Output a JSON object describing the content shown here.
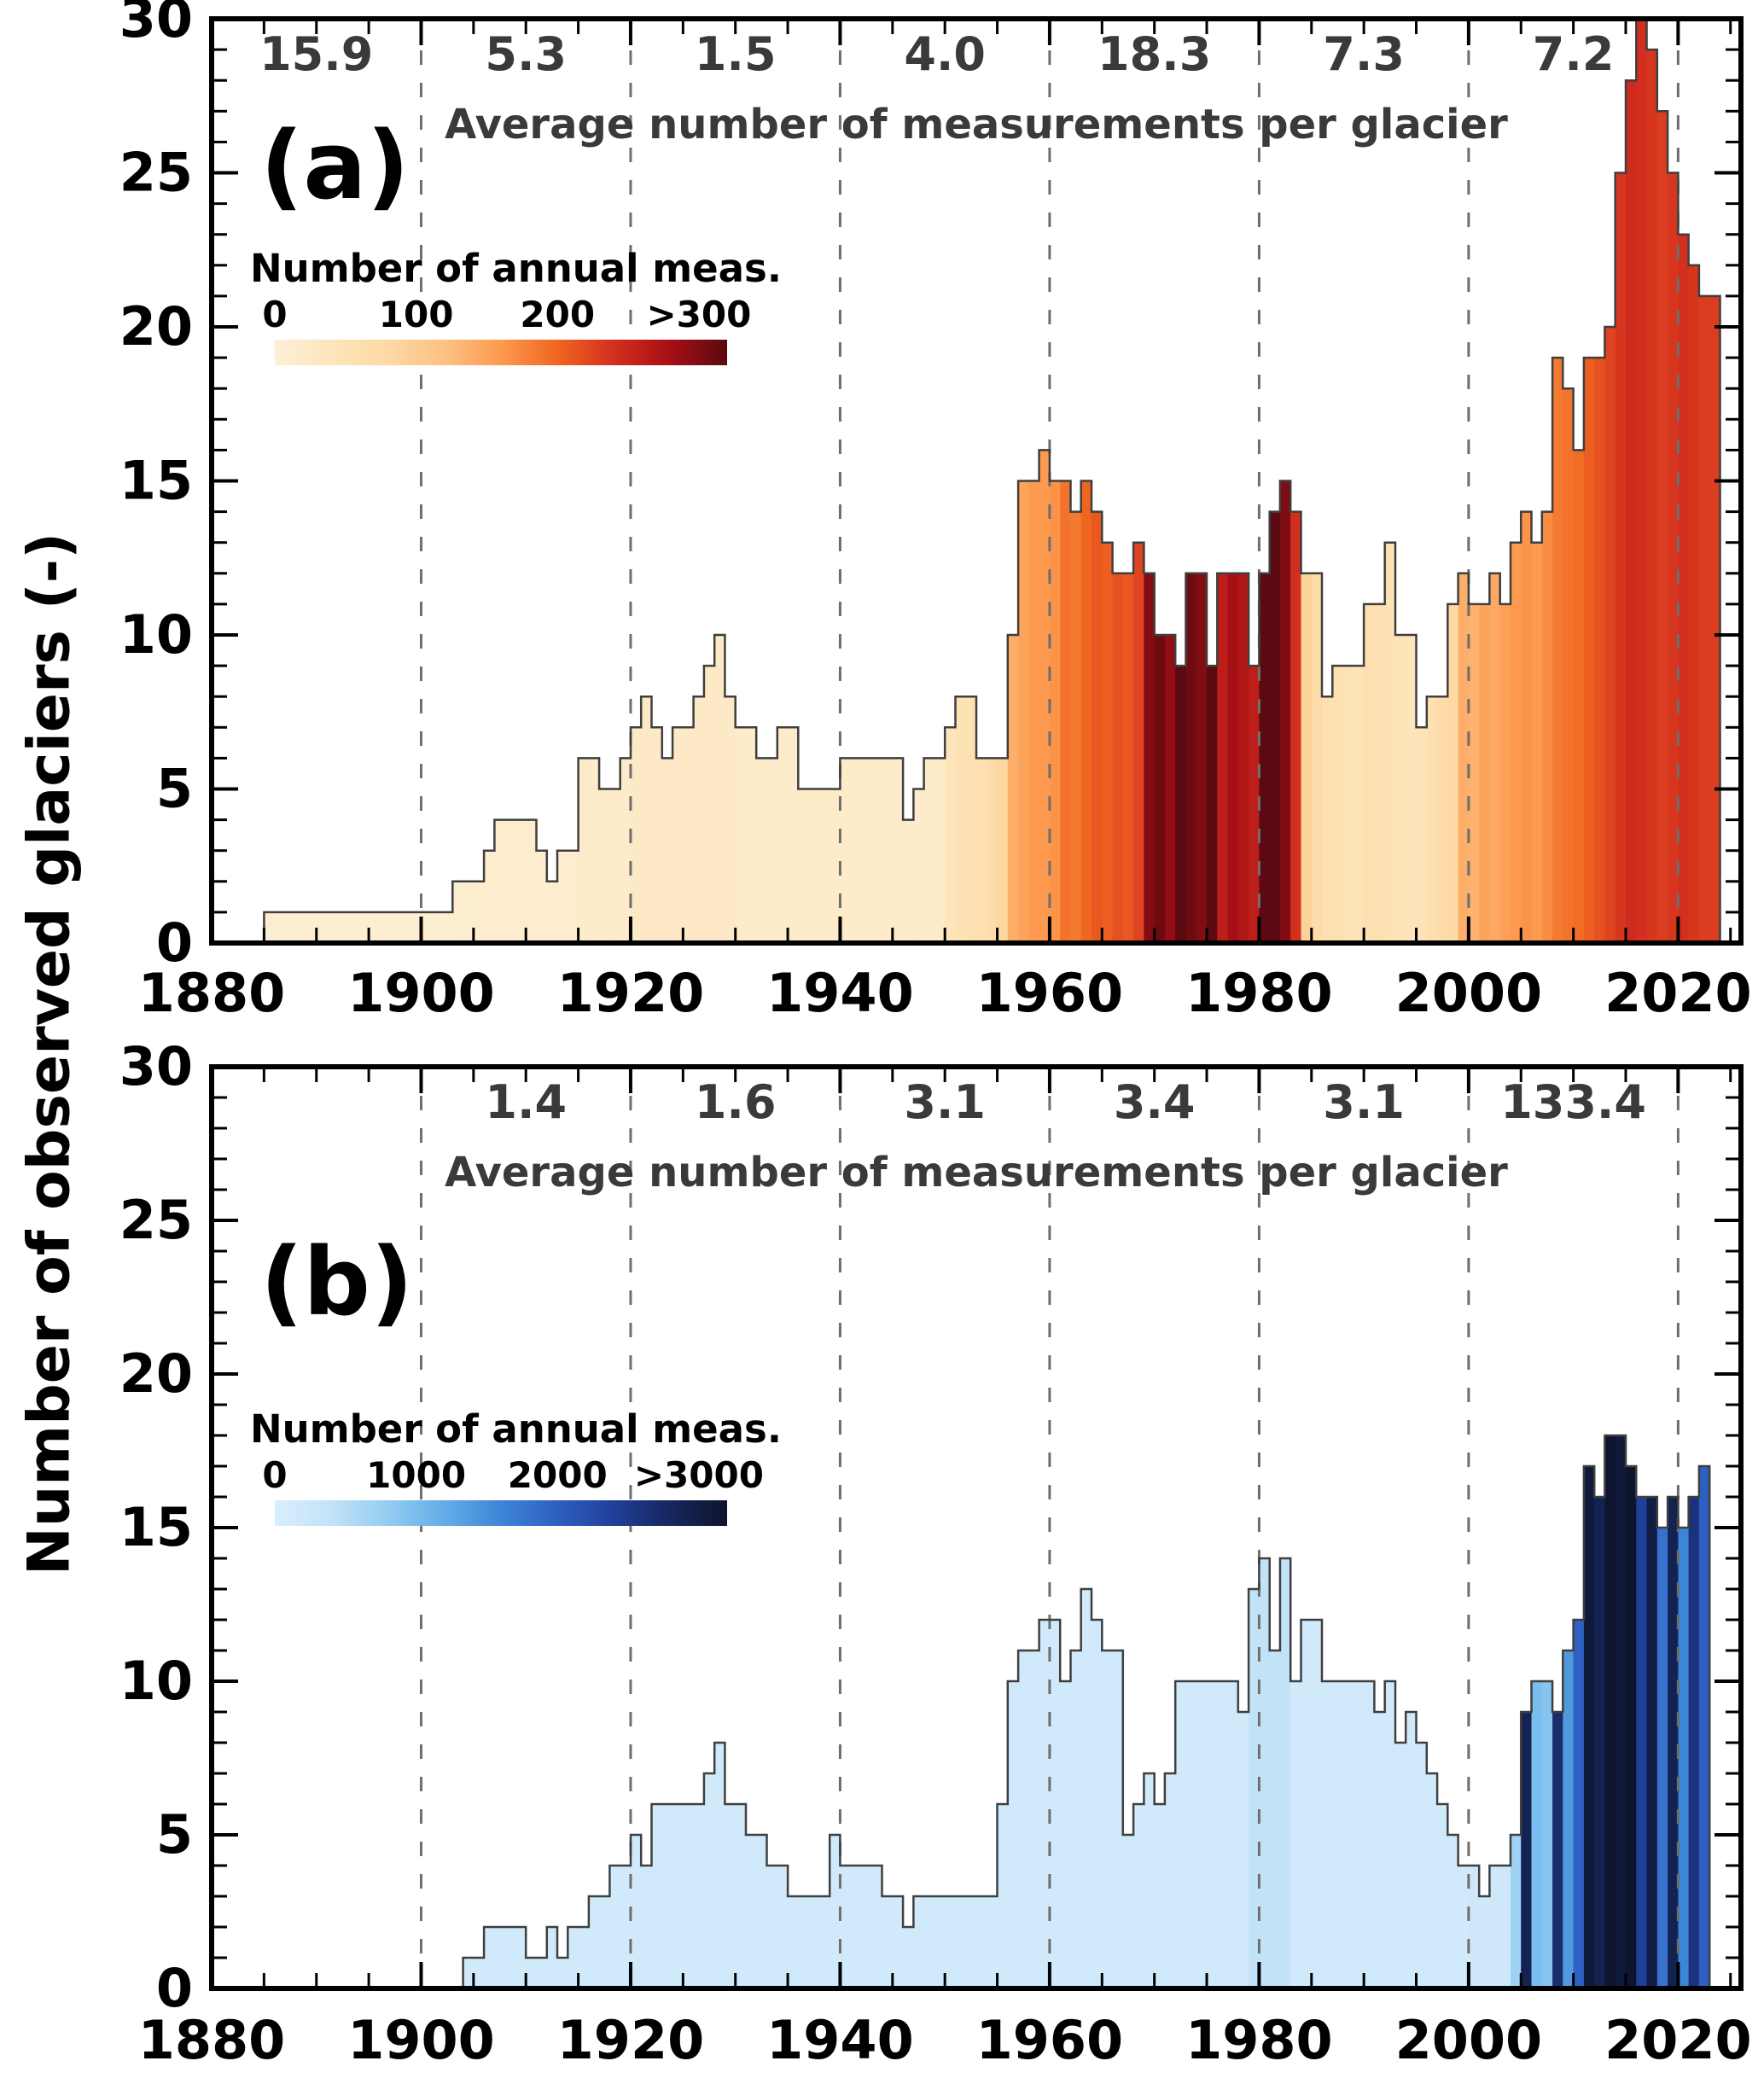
{
  "figure": {
    "ylabel": "Number of observed glaciers (-)"
  },
  "chart_data": [
    {
      "type": "bar",
      "panel_label": "(a)",
      "annotation_title": "Average number of measurements per glacier",
      "interval_avg_measurements": [
        {
          "center_year": 1890,
          "label": "15.9"
        },
        {
          "center_year": 1910,
          "label": "5.3"
        },
        {
          "center_year": 1930,
          "label": "1.5"
        },
        {
          "center_year": 1950,
          "label": "4.0"
        },
        {
          "center_year": 1970,
          "label": "18.3"
        },
        {
          "center_year": 1990,
          "label": "7.3"
        },
        {
          "center_year": 2010,
          "label": "7.2"
        }
      ],
      "legend": {
        "title": "Number of annual meas.",
        "tick_labels": [
          "0",
          "100",
          "200",
          ">300"
        ],
        "tick_values": [
          0,
          100,
          200,
          300
        ]
      },
      "colormap": {
        "domain_max": 320,
        "stops": [
          [
            0,
            "#fdf0d7"
          ],
          [
            40,
            "#fde5bb"
          ],
          [
            80,
            "#fdd9a4"
          ],
          [
            120,
            "#fdc183"
          ],
          [
            160,
            "#fd9a4f"
          ],
          [
            200,
            "#ef6620"
          ],
          [
            240,
            "#d32f1e"
          ],
          [
            280,
            "#a50f15"
          ],
          [
            320,
            "#5a0a10"
          ]
        ]
      },
      "xlim": [
        1880,
        2026
      ],
      "ylim": [
        0,
        30
      ],
      "x_ticks": [
        1880,
        1900,
        1920,
        1940,
        1960,
        1980,
        2000,
        2020
      ],
      "y_ticks": [
        0,
        5,
        10,
        15,
        20,
        25,
        30
      ],
      "gridline_years": [
        1900,
        1920,
        1940,
        1960,
        1980,
        2000,
        2020
      ],
      "start_year": 1885,
      "values": [
        1,
        1,
        1,
        1,
        1,
        1,
        1,
        1,
        1,
        1,
        1,
        1,
        1,
        1,
        1,
        1,
        1,
        1,
        2,
        2,
        2,
        3,
        4,
        4,
        4,
        4,
        3,
        2,
        3,
        3,
        6,
        6,
        5,
        5,
        6,
        7,
        8,
        7,
        6,
        7,
        7,
        8,
        9,
        10,
        8,
        7,
        7,
        6,
        6,
        7,
        7,
        5,
        5,
        5,
        5,
        6,
        6,
        6,
        6,
        6,
        6,
        4,
        5,
        6,
        6,
        7,
        8,
        8,
        6,
        6,
        6,
        10,
        15,
        15,
        16,
        15,
        15,
        14,
        15,
        14,
        13,
        12,
        12,
        13,
        12,
        10,
        10,
        9,
        12,
        12,
        9,
        12,
        12,
        12,
        9,
        12,
        14,
        15,
        14,
        12,
        12,
        8,
        9,
        9,
        9,
        11,
        11,
        13,
        10,
        10,
        7,
        8,
        8,
        11,
        12,
        11,
        11,
        12,
        11,
        13,
        14,
        13,
        14,
        19,
        18,
        16,
        19,
        19,
        20,
        25,
        28,
        30,
        29,
        27,
        25,
        23,
        22,
        21,
        21
      ],
      "annual_measurements": [
        8,
        8,
        8,
        8,
        8,
        8,
        8,
        8,
        8,
        8,
        8,
        8,
        8,
        8,
        8,
        8,
        8,
        8,
        12,
        12,
        12,
        15,
        15,
        15,
        15,
        15,
        15,
        15,
        15,
        15,
        20,
        20,
        20,
        20,
        20,
        25,
        25,
        25,
        25,
        25,
        25,
        25,
        25,
        25,
        25,
        20,
        20,
        20,
        20,
        20,
        18,
        18,
        18,
        18,
        18,
        18,
        18,
        18,
        18,
        18,
        20,
        20,
        20,
        20,
        20,
        40,
        50,
        55,
        60,
        70,
        85,
        140,
        150,
        160,
        160,
        165,
        190,
        185,
        200,
        210,
        205,
        215,
        210,
        225,
        300,
        310,
        290,
        320,
        310,
        300,
        320,
        260,
        280,
        270,
        260,
        320,
        320,
        300,
        240,
        90,
        70,
        60,
        55,
        50,
        45,
        60,
        55,
        50,
        45,
        40,
        45,
        60,
        70,
        80,
        140,
        135,
        150,
        145,
        155,
        160,
        165,
        160,
        170,
        185,
        190,
        195,
        205,
        215,
        225,
        235,
        245,
        240,
        235,
        230,
        235,
        240,
        235,
        230,
        230
      ]
    },
    {
      "type": "bar",
      "panel_label": "(b)",
      "annotation_title": "Average number of measurements per glacier",
      "interval_avg_measurements": [
        {
          "center_year": 1910,
          "label": "1.4"
        },
        {
          "center_year": 1930,
          "label": "1.6"
        },
        {
          "center_year": 1950,
          "label": "3.1"
        },
        {
          "center_year": 1970,
          "label": "3.4"
        },
        {
          "center_year": 1990,
          "label": "3.1"
        },
        {
          "center_year": 2010,
          "label": "133.4"
        }
      ],
      "legend": {
        "title": "Number of annual meas.",
        "tick_labels": [
          "0",
          "1000",
          "2000",
          ">3000"
        ],
        "tick_values": [
          0,
          1000,
          2000,
          3000
        ]
      },
      "colormap": {
        "domain_max": 3200,
        "stops": [
          [
            0,
            "#d9eefc"
          ],
          [
            400,
            "#c2e2f8"
          ],
          [
            800,
            "#93ccf1"
          ],
          [
            1200,
            "#62ade8"
          ],
          [
            1600,
            "#3d85d6"
          ],
          [
            2000,
            "#2e5fc2"
          ],
          [
            2400,
            "#203f97"
          ],
          [
            2800,
            "#16265e"
          ],
          [
            3200,
            "#0d142e"
          ]
        ]
      },
      "xlim": [
        1880,
        2026
      ],
      "ylim": [
        0,
        30
      ],
      "x_ticks": [
        1880,
        1900,
        1920,
        1940,
        1960,
        1980,
        2000,
        2020
      ],
      "y_ticks": [
        0,
        5,
        10,
        15,
        20,
        25,
        30
      ],
      "gridline_years": [
        1900,
        1920,
        1940,
        1960,
        1980,
        2000,
        2020
      ],
      "start_year": 1904,
      "values": [
        1,
        1,
        2,
        2,
        2,
        2,
        1,
        1,
        2,
        1,
        2,
        2,
        3,
        3,
        4,
        4,
        5,
        4,
        6,
        6,
        6,
        6,
        6,
        7,
        8,
        6,
        6,
        5,
        5,
        4,
        4,
        3,
        3,
        3,
        3,
        5,
        4,
        4,
        4,
        4,
        3,
        3,
        2,
        3,
        3,
        3,
        3,
        3,
        3,
        3,
        3,
        6,
        10,
        11,
        11,
        12,
        12,
        10,
        11,
        13,
        12,
        11,
        11,
        5,
        6,
        7,
        6,
        7,
        10,
        10,
        10,
        10,
        10,
        10,
        9,
        13,
        14,
        11,
        14,
        10,
        12,
        12,
        10,
        10,
        10,
        10,
        10,
        9,
        10,
        8,
        9,
        8,
        7,
        6,
        5,
        4,
        4,
        3,
        4,
        4,
        5,
        9,
        10,
        10,
        9,
        11,
        12,
        17,
        16,
        18,
        18,
        17,
        16,
        16,
        15,
        16,
        15,
        16,
        17
      ],
      "annual_measurements": [
        150,
        150,
        150,
        150,
        150,
        150,
        150,
        150,
        150,
        150,
        150,
        150,
        150,
        150,
        150,
        150,
        150,
        150,
        150,
        150,
        150,
        150,
        150,
        150,
        150,
        150,
        150,
        150,
        150,
        150,
        150,
        150,
        150,
        150,
        150,
        150,
        150,
        150,
        150,
        150,
        150,
        150,
        150,
        150,
        150,
        150,
        150,
        150,
        150,
        150,
        150,
        150,
        150,
        150,
        150,
        150,
        150,
        150,
        150,
        150,
        150,
        150,
        150,
        150,
        150,
        150,
        150,
        150,
        150,
        150,
        150,
        150,
        150,
        150,
        150,
        400,
        400,
        400,
        400,
        150,
        150,
        150,
        150,
        150,
        150,
        150,
        150,
        150,
        150,
        150,
        150,
        150,
        150,
        150,
        150,
        150,
        200,
        200,
        200,
        200,
        700,
        2900,
        1000,
        900,
        2700,
        1400,
        2000,
        3100,
        2900,
        3200,
        3100,
        3200,
        2400,
        3000,
        1800,
        2900,
        1600,
        2600,
        2000
      ]
    }
  ]
}
